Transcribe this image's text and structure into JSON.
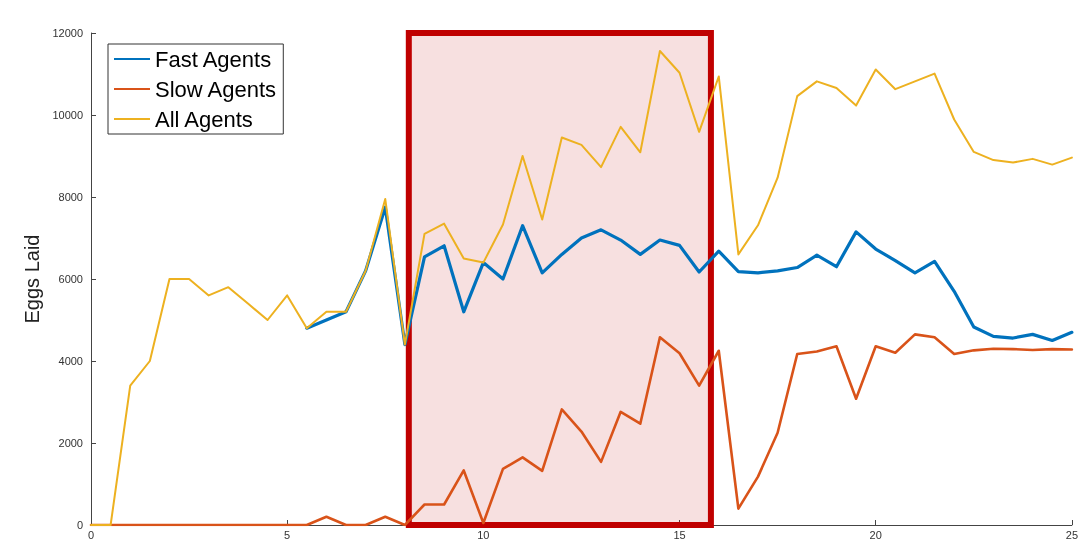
{
  "chart_data": {
    "type": "line",
    "ylabel": "Eggs Laid",
    "x": [
      0,
      0.5,
      1,
      1.5,
      2,
      2.5,
      3,
      3.5,
      4,
      4.5,
      5,
      5.5,
      6,
      6.5,
      7,
      7.5,
      8,
      8.5,
      9,
      9.5,
      10,
      10.5,
      11,
      11.5,
      12,
      12.5,
      13,
      13.5,
      14,
      14.5,
      15,
      15.5,
      16,
      16.5,
      17,
      17.5,
      18,
      18.5,
      19,
      19.5,
      20,
      20.5,
      21,
      21.5,
      22,
      22.5,
      23,
      23.5,
      24,
      24.5,
      25
    ],
    "series": [
      {
        "name": "Fast Agents",
        "color": "#0072bd",
        "values": [
          null,
          null,
          null,
          null,
          null,
          null,
          null,
          null,
          null,
          null,
          null,
          4800,
          5000,
          5200,
          6200,
          7750,
          4400,
          6540,
          6810,
          5200,
          6400,
          6000,
          7300,
          6150,
          6600,
          7000,
          7200,
          6950,
          6600,
          6950,
          6820,
          6170,
          6680,
          6180,
          6150,
          6200,
          6280,
          6580,
          6300,
          7150,
          6730,
          6450,
          6150,
          6430,
          5700,
          4830,
          4600,
          4560,
          4650,
          4500,
          4700
        ]
      },
      {
        "name": "Slow Agents",
        "color": "#d95319",
        "values": [
          0,
          0,
          0,
          0,
          0,
          0,
          0,
          0,
          0,
          0,
          0,
          0,
          200,
          0,
          0,
          200,
          0,
          500,
          500,
          1330,
          50,
          1370,
          1650,
          1320,
          2820,
          2280,
          1540,
          2760,
          2470,
          4580,
          4190,
          3400,
          4250,
          400,
          1180,
          2250,
          4170,
          4230,
          4360,
          3080,
          4360,
          4200,
          4650,
          4580,
          4170,
          4260,
          4300,
          4290,
          4270,
          4290,
          4280
        ]
      },
      {
        "name": "All Agents",
        "color": "#edb120",
        "values": [
          0,
          0,
          3400,
          4000,
          6000,
          6000,
          5600,
          5800,
          5400,
          5000,
          5600,
          4800,
          5200,
          5200,
          6200,
          7950,
          4400,
          7100,
          7350,
          6500,
          6400,
          7330,
          9000,
          7450,
          9450,
          9270,
          8730,
          9710,
          9090,
          11560,
          11030,
          9590,
          10940,
          6600,
          7310,
          8470,
          10460,
          10820,
          10660,
          10230,
          11110,
          10630,
          10820,
          11010,
          9890,
          9100,
          8900,
          8840,
          8930,
          8790,
          8960
        ]
      }
    ],
    "xlim": [
      0,
      25
    ],
    "xticks": [
      0,
      5,
      10,
      15,
      20,
      25
    ],
    "ylim": [
      0,
      12000
    ],
    "yticks": [
      0,
      2000,
      4000,
      6000,
      8000,
      10000,
      12000
    ],
    "bands": [
      {
        "axis": "x",
        "from": 8.1,
        "to": 15.8,
        "color": "#c00000"
      }
    ],
    "legend": "top left",
    "grid": false,
    "marker": "none",
    "line_style": "solid"
  }
}
